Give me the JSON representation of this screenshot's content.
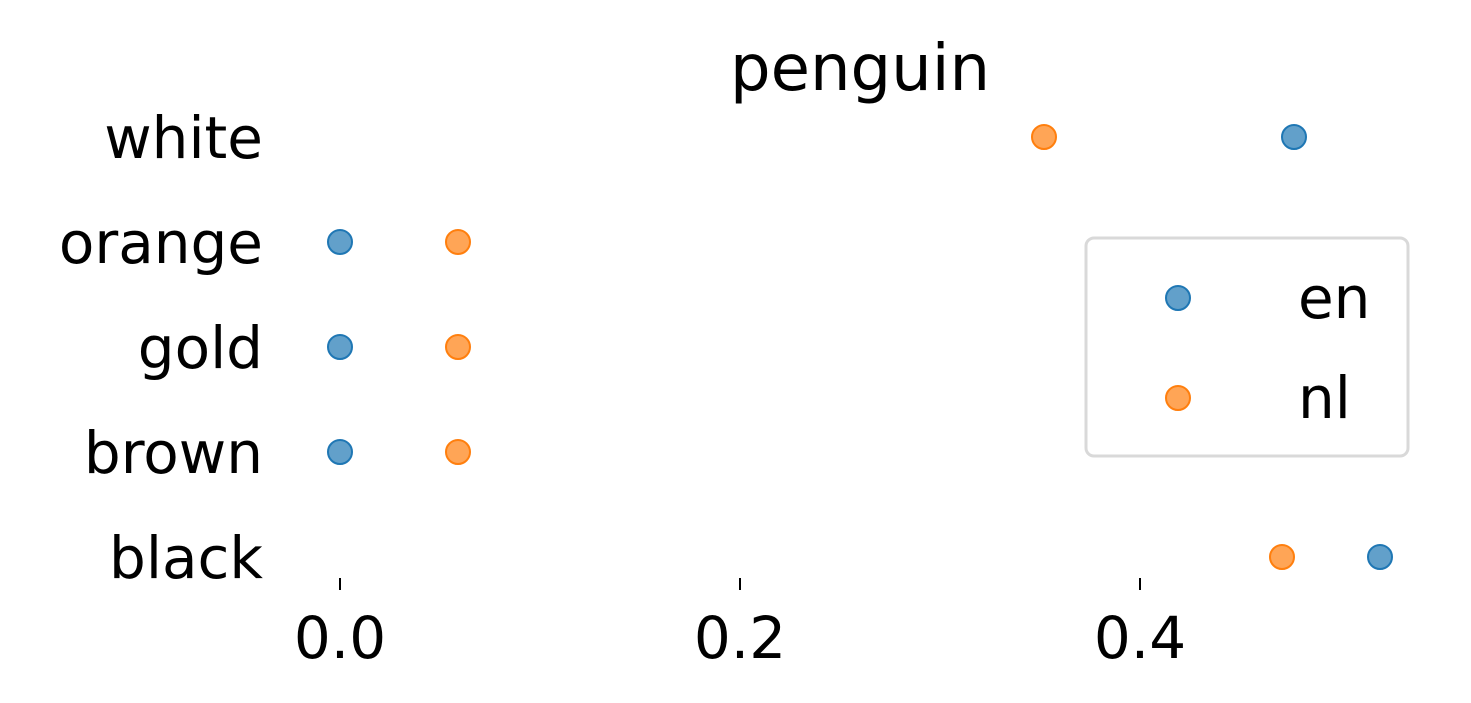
{
  "chart_data": {
    "type": "scatter",
    "title": "penguin",
    "xlabel": "",
    "ylabel": "",
    "categories": [
      "white",
      "orange",
      "gold",
      "brown",
      "black"
    ],
    "xlim": [
      -0.03,
      0.535
    ],
    "xticks": [
      0.0,
      0.2,
      0.4
    ],
    "xtick_labels": [
      "0.0",
      "0.2",
      "0.4"
    ],
    "grid": false,
    "legend": "center-right",
    "series": [
      {
        "name": "en",
        "color": "#1f77b4",
        "values": [
          0.477,
          0.0,
          0.0,
          0.0,
          0.52
        ]
      },
      {
        "name": "nl",
        "color": "#ff7f0e",
        "values": [
          0.352,
          0.059,
          0.059,
          0.059,
          0.471
        ]
      }
    ]
  }
}
